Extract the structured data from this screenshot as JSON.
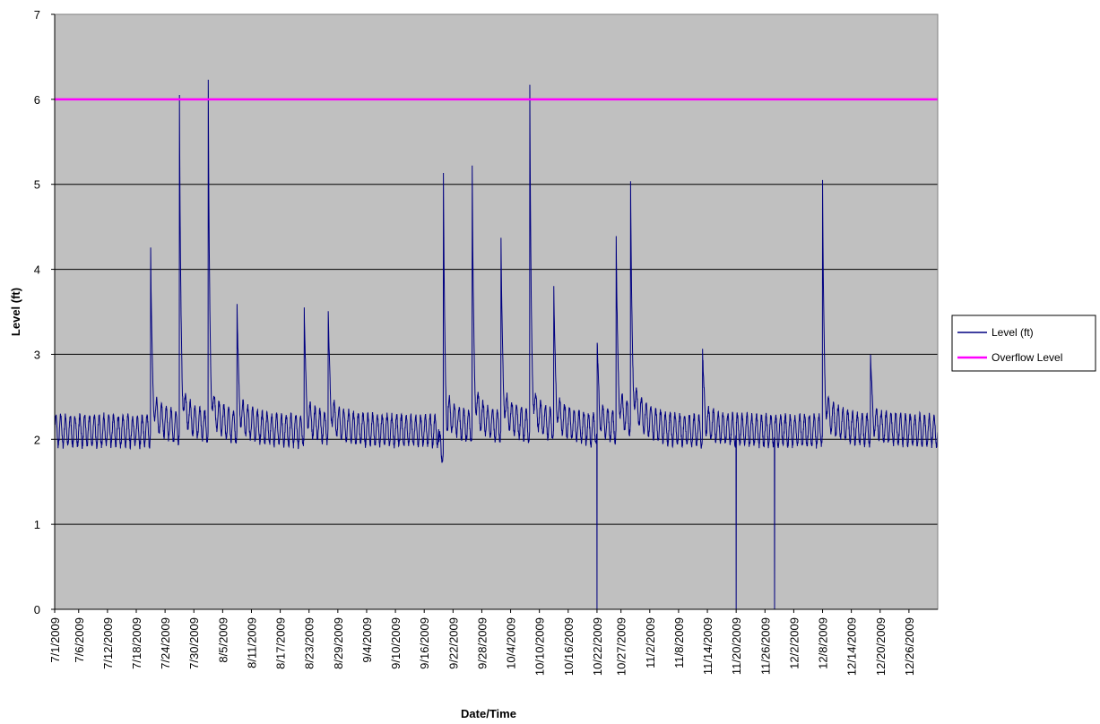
{
  "chart_data": {
    "type": "line",
    "title": "",
    "xlabel": "Date/Time",
    "ylabel": "Level (ft)",
    "ylim": [
      0,
      7
    ],
    "yticks": [
      0,
      1,
      2,
      3,
      4,
      5,
      6,
      7
    ],
    "xlim": [
      "2009-07-01",
      "2010-01-01"
    ],
    "x_tick_labels": [
      "7/1/2009",
      "7/6/2009",
      "7/12/2009",
      "7/18/2009",
      "7/24/2009",
      "7/30/2009",
      "8/5/2009",
      "8/11/2009",
      "8/17/2009",
      "8/23/2009",
      "8/29/2009",
      "9/4/2009",
      "9/10/2009",
      "9/16/2009",
      "9/22/2009",
      "9/28/2009",
      "10/4/2009",
      "10/10/2009",
      "10/16/2009",
      "10/22/2009",
      "10/27/2009",
      "11/2/2009",
      "11/8/2009",
      "11/14/2009",
      "11/20/2009",
      "11/26/2009",
      "12/2/2009",
      "12/8/2009",
      "12/14/2009",
      "12/20/2009",
      "12/26/2009"
    ],
    "x_tick_dates": [
      "2009-07-01",
      "2009-07-06",
      "2009-07-12",
      "2009-07-18",
      "2009-07-24",
      "2009-07-30",
      "2009-08-05",
      "2009-08-11",
      "2009-08-17",
      "2009-08-23",
      "2009-08-29",
      "2009-09-04",
      "2009-09-10",
      "2009-09-16",
      "2009-09-22",
      "2009-09-28",
      "2009-10-04",
      "2009-10-10",
      "2009-10-16",
      "2009-10-22",
      "2009-10-27",
      "2009-11-02",
      "2009-11-08",
      "2009-11-14",
      "2009-11-20",
      "2009-11-26",
      "2009-12-02",
      "2009-12-08",
      "2009-12-14",
      "2009-12-20",
      "2009-12-26"
    ],
    "grid": true,
    "plot_background": "#C0C0C0",
    "legend_position": "right",
    "series": [
      {
        "name": "Level (ft)",
        "color": "#000080",
        "baseline_level": 2.1,
        "daily_oscillation": 0.35,
        "events": [
          {
            "date": "2009-07-21",
            "peak": 3.95
          },
          {
            "date": "2009-07-27",
            "peak": 5.7
          },
          {
            "date": "2009-08-02",
            "peak": 5.9
          },
          {
            "date": "2009-08-08",
            "peak": 3.35
          },
          {
            "date": "2009-08-22",
            "peak": 3.37
          },
          {
            "date": "2009-08-27",
            "peak": 3.32
          },
          {
            "date": "2009-09-20",
            "peak": 5.05
          },
          {
            "date": "2009-09-26",
            "peak": 4.87
          },
          {
            "date": "2009-10-02",
            "peak": 4.07
          },
          {
            "date": "2009-10-08",
            "peak": 5.8
          },
          {
            "date": "2009-10-13",
            "peak": 3.52
          },
          {
            "date": "2009-10-22",
            "peak": 3.12
          },
          {
            "date": "2009-10-26",
            "peak": 4.08
          },
          {
            "date": "2009-10-29",
            "peak": 4.65
          },
          {
            "date": "2009-11-13",
            "peak": 2.92
          },
          {
            "date": "2009-12-08",
            "peak": 4.72
          },
          {
            "date": "2009-12-18",
            "peak": 2.88
          }
        ],
        "dropouts": [
          {
            "date": "2009-10-22",
            "value": 0
          },
          {
            "date": "2009-11-20",
            "value": 0
          },
          {
            "date": "2009-11-28",
            "value": 0
          }
        ]
      },
      {
        "name": "Overflow Level",
        "color": "#FF00FF",
        "values": [
          6,
          6
        ]
      }
    ]
  }
}
